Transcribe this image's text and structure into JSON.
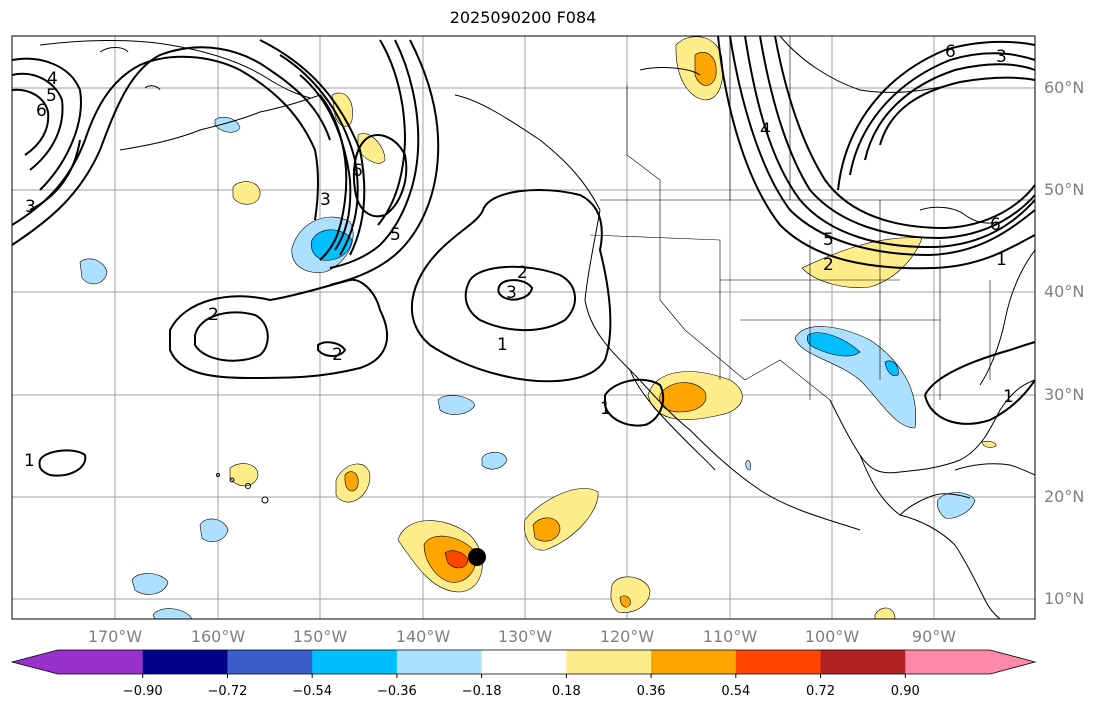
{
  "title": "2025090200 F084",
  "map": {
    "lon_labels": [
      "170°W",
      "160°W",
      "150°W",
      "140°W",
      "130°W",
      "120°W",
      "110°W",
      "100°W",
      "90°W"
    ],
    "lat_labels": [
      "60°N",
      "50°N",
      "40°N",
      "30°N",
      "20°N",
      "10°N"
    ],
    "contour_labels": [
      "4",
      "5",
      "6",
      "3",
      "2",
      "3",
      "2",
      "2",
      "1",
      "1",
      "1",
      "1",
      "6",
      "5",
      "2",
      "3",
      "5",
      "6",
      "1",
      "6",
      "3",
      "4"
    ],
    "marker": "storm-center-dot"
  },
  "colorbar": {
    "tick_labels": [
      "−0.90",
      "−0.72",
      "−0.54",
      "−0.36",
      "−0.18",
      "0.18",
      "0.36",
      "0.54",
      "0.72",
      "0.90"
    ],
    "colors": [
      "#9932CC",
      "#9932CC",
      "#00008B",
      "#3A5FCD",
      "#00BFFF",
      "#ADDFFF",
      "#FFFFFF",
      "#FFEC8B",
      "#FFA500",
      "#FF4500",
      "#B22222",
      "#FF88AA",
      "#FF88AA"
    ]
  },
  "colors": {
    "land_line": "#000000",
    "grid": "#999999",
    "contour": "#000000"
  }
}
